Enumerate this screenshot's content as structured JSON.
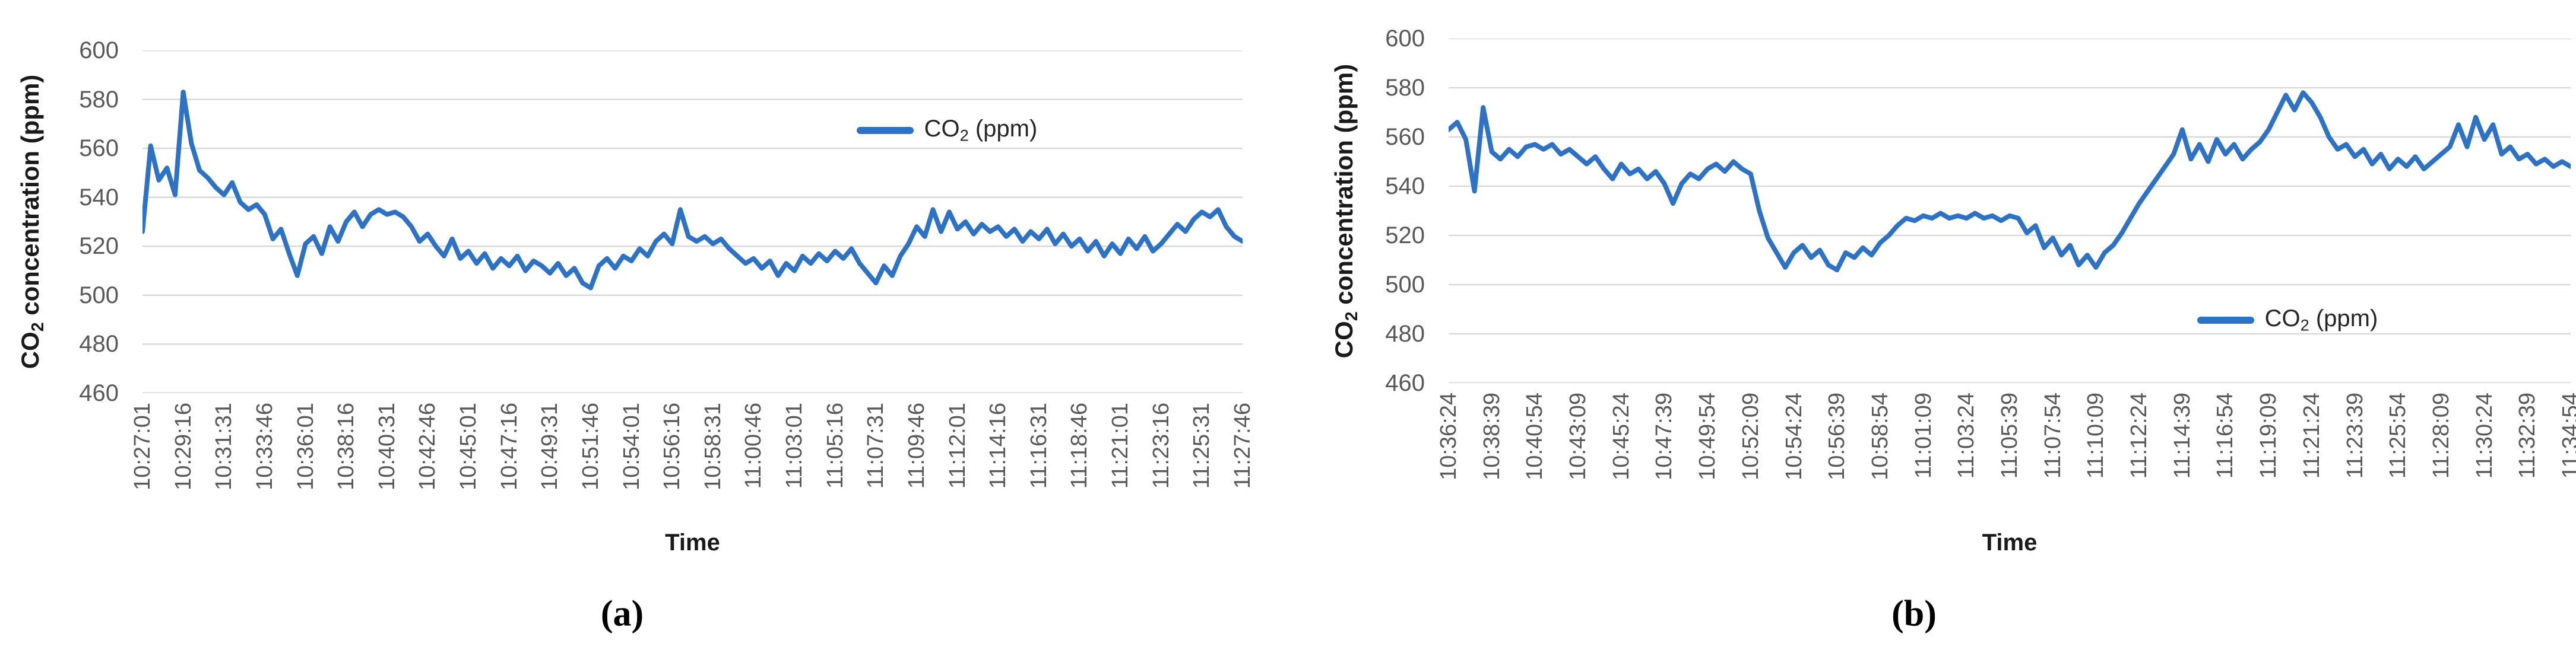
{
  "figure": {
    "background_color": "#ffffff",
    "grid_color": "#d9d9d9",
    "tick_text_color": "#595959",
    "series_color": "#2e72c6"
  },
  "chart_data": [
    {
      "type": "line",
      "caption": "(a)",
      "ylabel": "CO2 concentration (ppm)",
      "ylabel_parts": {
        "prefix": "CO",
        "sub": "2",
        "suffix": " concentration (ppm)"
      },
      "xlabel": "Time",
      "ylim": [
        460,
        600
      ],
      "ytick_step": 20,
      "yticks": [
        "600",
        "580",
        "560",
        "540",
        "520",
        "500",
        "480",
        "460"
      ],
      "grid": true,
      "line_color": "#2e72c6",
      "legend": {
        "label": "CO2 (ppm)",
        "parts": {
          "prefix": "CO",
          "sub": "2",
          "suffix": " (ppm)"
        },
        "position_pct": {
          "left": 64.9,
          "top": 19.0
        }
      },
      "label_interval_seconds": 135,
      "points_per_label_interval": 5,
      "categories": [
        "10:27:01",
        "10:29:16",
        "10:31:31",
        "10:33:46",
        "10:36:01",
        "10:38:16",
        "10:40:31",
        "10:42:46",
        "10:45:01",
        "10:47:16",
        "10:49:31",
        "10:51:46",
        "10:54:01",
        "10:56:16",
        "10:58:31",
        "11:00:46",
        "11:03:01",
        "11:05:16",
        "11:07:31",
        "11:09:46",
        "11:12:01",
        "11:14:16",
        "11:16:31",
        "11:18:46",
        "11:21:01",
        "11:23:16",
        "11:25:31",
        "11:27:46"
      ],
      "values": [
        526,
        561,
        547,
        552,
        541,
        583,
        562,
        551,
        548,
        544,
        541,
        546,
        538,
        535,
        537,
        533,
        523,
        527,
        517,
        508,
        521,
        524,
        517,
        528,
        522,
        530,
        534,
        528,
        533,
        535,
        533,
        534,
        532,
        528,
        522,
        525,
        520,
        516,
        523,
        515,
        518,
        513,
        517,
        511,
        515,
        512,
        516,
        510,
        514,
        512,
        509,
        513,
        508,
        511,
        505,
        503,
        512,
        515,
        511,
        516,
        514,
        519,
        516,
        522,
        525,
        521,
        535,
        524,
        522,
        524,
        521,
        523,
        519,
        516,
        513,
        515,
        511,
        514,
        508,
        513,
        510,
        516,
        513,
        517,
        514,
        518,
        515,
        519,
        513,
        509,
        505,
        512,
        508,
        516,
        521,
        528,
        524,
        535,
        526,
        534,
        527,
        530,
        525,
        529,
        526,
        528,
        524,
        527,
        522,
        526,
        523,
        527,
        521,
        525,
        520,
        523,
        518,
        522,
        516,
        521,
        517,
        523,
        519,
        524,
        518,
        521,
        525,
        529,
        526,
        531,
        534,
        532,
        535,
        528,
        524,
        522
      ]
    },
    {
      "type": "line",
      "caption": "(b)",
      "ylabel": "CO2 concentration (ppm)",
      "ylabel_parts": {
        "prefix": "CO",
        "sub": "2",
        "suffix": " concentration (ppm)"
      },
      "xlabel": "Time",
      "ylim": [
        460,
        600
      ],
      "ytick_step": 20,
      "yticks": [
        "600",
        "580",
        "560",
        "540",
        "520",
        "500",
        "480",
        "460"
      ],
      "grid": true,
      "line_color": "#2e72c6",
      "legend": {
        "label": "CO2 (ppm)",
        "parts": {
          "prefix": "CO",
          "sub": "2",
          "suffix": " (ppm)"
        },
        "position_pct": {
          "left": 66.7,
          "top": 77.5
        }
      },
      "label_interval_seconds": 135,
      "points_per_label_interval": 5,
      "categories": [
        "10:36:24",
        "10:38:39",
        "10:40:54",
        "10:43:09",
        "10:45:24",
        "10:47:39",
        "10:49:54",
        "10:52:09",
        "10:54:24",
        "10:56:39",
        "10:58:54",
        "11:01:09",
        "11:03:24",
        "11:05:39",
        "11:07:54",
        "11:10:09",
        "11:12:24",
        "11:14:39",
        "11:16:54",
        "11:19:09",
        "11:21:24",
        "11:23:39",
        "11:25:54",
        "11:28:09",
        "11:30:24",
        "11:32:39",
        "11:34:54"
      ],
      "values": [
        563,
        566,
        559,
        538,
        572,
        554,
        551,
        555,
        552,
        556,
        557,
        555,
        557,
        553,
        555,
        552,
        549,
        552,
        547,
        543,
        549,
        545,
        547,
        543,
        546,
        541,
        533,
        541,
        545,
        543,
        547,
        549,
        546,
        550,
        547,
        545,
        530,
        519,
        513,
        507,
        513,
        516,
        511,
        514,
        508,
        506,
        513,
        511,
        515,
        512,
        517,
        520,
        524,
        527,
        526,
        528,
        527,
        529,
        527,
        528,
        527,
        529,
        527,
        528,
        526,
        528,
        527,
        521,
        524,
        515,
        519,
        512,
        516,
        508,
        512,
        507,
        513,
        516,
        521,
        527,
        533,
        538,
        543,
        548,
        553,
        563,
        551,
        557,
        550,
        559,
        553,
        557,
        551,
        555,
        558,
        563,
        570,
        577,
        571,
        578,
        574,
        568,
        560,
        555,
        557,
        552,
        555,
        549,
        553,
        547,
        551,
        548,
        552,
        547,
        550,
        553,
        556,
        565,
        556,
        568,
        559,
        565,
        553,
        556,
        551,
        553,
        549,
        551,
        548,
        550,
        548
      ]
    }
  ]
}
